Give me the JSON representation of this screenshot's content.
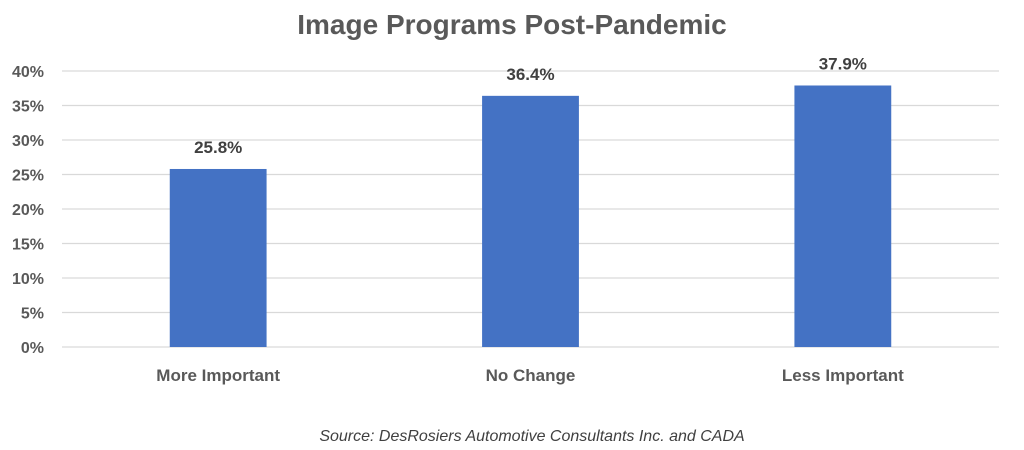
{
  "chart_data": {
    "type": "bar",
    "title": "Image Programs Post-Pandemic",
    "categories": [
      "More Important",
      "No Change",
      "Less Important"
    ],
    "values": [
      25.8,
      36.4,
      37.9
    ],
    "data_labels": [
      "25.8%",
      "36.4%",
      "37.9%"
    ],
    "ylim": [
      0,
      40
    ],
    "yticks": [
      0,
      5,
      10,
      15,
      20,
      25,
      30,
      35,
      40
    ],
    "ytick_labels": [
      "0%",
      "5%",
      "10%",
      "15%",
      "20%",
      "25%",
      "30%",
      "35%",
      "40%"
    ],
    "grid": true,
    "legend": "none",
    "xlabel": "",
    "ylabel": "",
    "colors": {
      "bar": "#4472C4",
      "grid": "#D9D9D9",
      "text": "#595959",
      "title": "#595959",
      "label": "#404040"
    }
  },
  "source": "Source: DesRosiers Automotive Consultants Inc. and CADA"
}
